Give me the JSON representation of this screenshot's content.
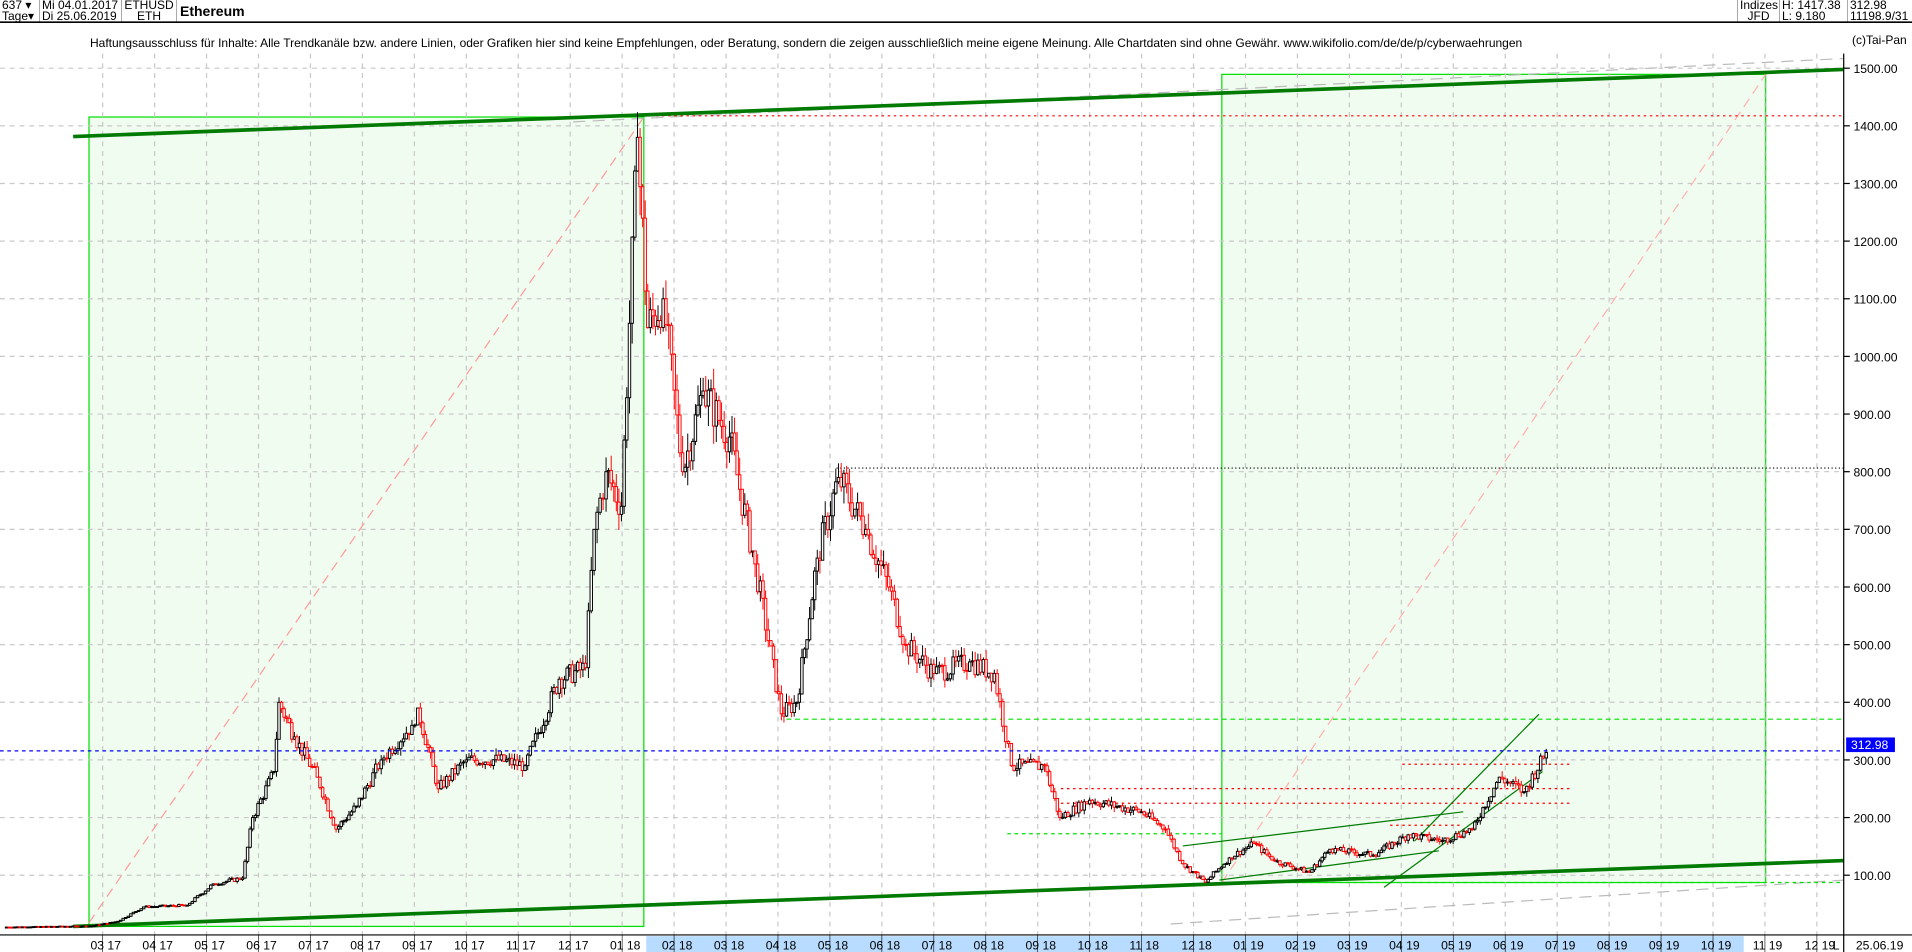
{
  "header": {
    "bar_count": "637",
    "period": "Tage",
    "start_date": "Mi 04.01.2017",
    "end_date": "Di 25.06.2019",
    "symbol": "ETHUSD",
    "short_name": "ETH",
    "title": "Ethereum",
    "index_label": "Indizes",
    "source": "JFD",
    "high": "H: 1417.38",
    "low": "L: 9.180",
    "last": "312.98",
    "volume": "11198.9/31"
  },
  "disclaimer": "Haftungsausschluss für Inhalte: Alle Trendkanäle bzw. andere Linien, oder Grafiken hier sind keine Empfehlungen, oder Beratung, sondern die zeigen ausschließlich meine eigene Meinung. Alle Chartdaten sind ohne Gewähr.  www.wikifolio.com/de/de/p/cyberwaehrungen",
  "copyright": "(c)Tai-Pan",
  "footer": {
    "mode": "L",
    "date": "25.06.19"
  },
  "colors": {
    "up": "#000000",
    "down": "#ff0000",
    "box_fill": "#f0fcf0",
    "box_stroke": "#00e000",
    "channel": "#007a00",
    "last_price": "#0000ff"
  },
  "chart_data": {
    "type": "candlestick",
    "title": "Ethereum",
    "ylim": [
      0,
      1550
    ],
    "yticks": [
      "100.00",
      "200.00",
      "300.00",
      "400.00",
      "500.00",
      "600.00",
      "700.00",
      "800.00",
      "900.00",
      "1000.00",
      "1100.00",
      "1200.00",
      "1300.00",
      "1400.00",
      "1500.00"
    ],
    "xticks": [
      "03 17",
      "04 17",
      "05 17",
      "06 17",
      "07 17",
      "08 17",
      "09 17",
      "10 17",
      "11 17",
      "12 17",
      "01 18",
      "02 18",
      "03 18",
      "04 18",
      "05 18",
      "06 18",
      "07 18",
      "08 18",
      "09 18",
      "10 18",
      "11 18",
      "12 18",
      "01 19",
      "02 19",
      "03 19",
      "04 19",
      "05 19",
      "06 19",
      "07 19",
      "08 19",
      "09 19",
      "10 19",
      "11 19",
      "12 19"
    ],
    "last_price_label": "312.98",
    "close_points": [
      [
        "2017-01-04",
        10
      ],
      [
        "2017-02-25",
        12
      ],
      [
        "2017-03-10",
        20
      ],
      [
        "2017-03-25",
        45
      ],
      [
        "2017-04-20",
        48
      ],
      [
        "2017-05-05",
        85
      ],
      [
        "2017-05-22",
        95
      ],
      [
        "2017-05-28",
        200
      ],
      [
        "2017-06-10",
        280
      ],
      [
        "2017-06-13",
        400
      ],
      [
        "2017-06-22",
        340
      ],
      [
        "2017-07-05",
        270
      ],
      [
        "2017-07-16",
        180
      ],
      [
        "2017-07-28",
        220
      ],
      [
        "2017-08-12",
        300
      ],
      [
        "2017-08-30",
        360
      ],
      [
        "2017-09-03",
        390
      ],
      [
        "2017-09-15",
        250
      ],
      [
        "2017-10-01",
        300
      ],
      [
        "2017-10-20",
        300
      ],
      [
        "2017-11-05",
        290
      ],
      [
        "2017-11-25",
        440
      ],
      [
        "2017-12-10",
        460
      ],
      [
        "2017-12-15",
        700
      ],
      [
        "2017-12-22",
        800
      ],
      [
        "2017-12-31",
        740
      ],
      [
        "2018-01-10",
        1380
      ],
      [
        "2018-01-16",
        1050
      ],
      [
        "2018-01-25",
        1100
      ],
      [
        "2018-02-06",
        800
      ],
      [
        "2018-02-18",
        940
      ],
      [
        "2018-03-03",
        860
      ],
      [
        "2018-03-18",
        640
      ],
      [
        "2018-04-03",
        380
      ],
      [
        "2018-04-12",
        400
      ],
      [
        "2018-04-24",
        650
      ],
      [
        "2018-05-06",
        790
      ],
      [
        "2018-05-22",
        700
      ],
      [
        "2018-06-05",
        600
      ],
      [
        "2018-06-15",
        500
      ],
      [
        "2018-07-01",
        450
      ],
      [
        "2018-07-22",
        470
      ],
      [
        "2018-08-06",
        450
      ],
      [
        "2018-08-16",
        290
      ],
      [
        "2018-09-05",
        290
      ],
      [
        "2018-09-14",
        200
      ],
      [
        "2018-10-01",
        230
      ],
      [
        "2018-11-01",
        210
      ],
      [
        "2018-11-15",
        180
      ],
      [
        "2018-11-25",
        120
      ],
      [
        "2018-12-08",
        88
      ],
      [
        "2018-12-22",
        130
      ],
      [
        "2019-01-06",
        155
      ],
      [
        "2019-01-18",
        125
      ],
      [
        "2019-02-08",
        105
      ],
      [
        "2019-02-20",
        145
      ],
      [
        "2019-03-15",
        135
      ],
      [
        "2019-04-05",
        170
      ],
      [
        "2019-04-25",
        160
      ],
      [
        "2019-05-12",
        180
      ],
      [
        "2019-05-28",
        270
      ],
      [
        "2019-06-12",
        245
      ],
      [
        "2019-06-25",
        312.98
      ]
    ],
    "horizontal_levels": [
      1417.38,
      805,
      365,
      312.98,
      290,
      250,
      225,
      185,
      170,
      85
    ],
    "grid": true
  }
}
